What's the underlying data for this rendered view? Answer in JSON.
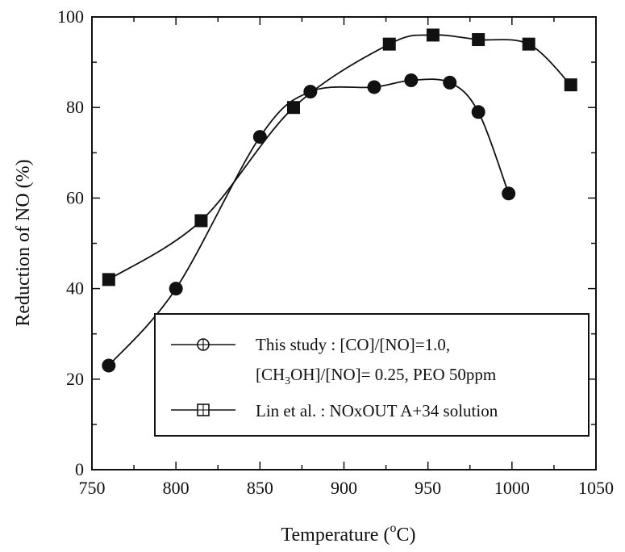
{
  "chart_data": {
    "type": "line",
    "xlabel_main": "Temperature (",
    "xlabel_sup": "o",
    "xlabel_tail": "C)",
    "ylabel": "Reduction of NO (%)",
    "xlim": [
      750,
      1050
    ],
    "ylim": [
      0,
      100
    ],
    "xticks": [
      750,
      800,
      850,
      900,
      950,
      1000,
      1050
    ],
    "yticks": [
      0,
      20,
      40,
      60,
      80,
      100
    ],
    "grid": false,
    "legend_position": "bottom-right",
    "series": [
      {
        "name": "This study : [CO]/[NO]=1.0,",
        "name_line2_pre": "[CH",
        "name_line2_sub": "3",
        "name_line2_post": "OH]/[NO]= 0.25,  PEO 50ppm",
        "marker": "circle",
        "color": "#111111",
        "x": [
          760,
          800,
          850,
          880,
          918,
          940,
          963,
          980,
          998
        ],
        "y": [
          23,
          40,
          73.5,
          83.5,
          84.5,
          86,
          85.5,
          79,
          61
        ]
      },
      {
        "name": "Lin et al. : NOxOUT A+34 solution",
        "marker": "square",
        "color": "#111111",
        "x": [
          760,
          815,
          870,
          927,
          953,
          980,
          1010,
          1035
        ],
        "y": [
          42,
          55,
          80,
          94,
          96,
          95,
          94,
          85
        ]
      }
    ]
  }
}
